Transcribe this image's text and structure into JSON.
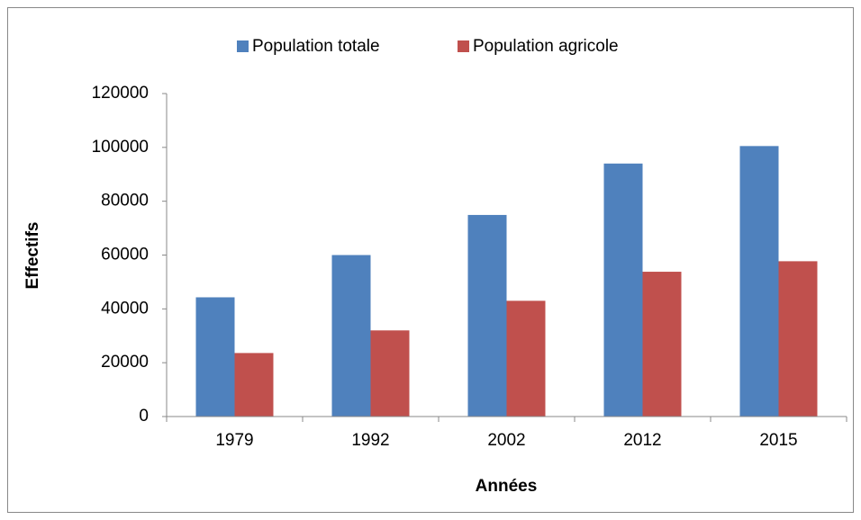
{
  "chart_data": {
    "type": "bar",
    "categories": [
      "1979",
      "1992",
      "2002",
      "2012",
      "2015"
    ],
    "series": [
      {
        "name": "Population totale",
        "color": "#4f81bd",
        "values": [
          44300,
          60000,
          74900,
          94000,
          100500
        ]
      },
      {
        "name": "Population agricole",
        "color": "#c0504d",
        "values": [
          23600,
          32000,
          43000,
          53800,
          57700
        ]
      }
    ],
    "xlabel": "Années",
    "ylabel": "Effectifs",
    "ylim": [
      0,
      120000
    ],
    "yticks": [
      0,
      20000,
      40000,
      60000,
      80000,
      100000,
      120000
    ],
    "legend": "top",
    "grid": false
  }
}
